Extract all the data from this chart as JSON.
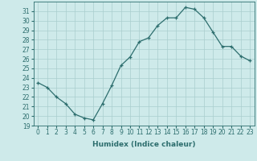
{
  "x": [
    0,
    1,
    2,
    3,
    4,
    5,
    6,
    7,
    8,
    9,
    10,
    11,
    12,
    13,
    14,
    15,
    16,
    17,
    18,
    19,
    20,
    21,
    22,
    23
  ],
  "y": [
    23.5,
    23.0,
    22.0,
    21.3,
    20.2,
    19.8,
    19.6,
    21.3,
    23.2,
    25.3,
    26.2,
    27.8,
    28.2,
    29.5,
    30.3,
    30.3,
    31.4,
    31.2,
    30.3,
    28.8,
    27.3,
    27.3,
    26.3,
    25.8
  ],
  "line_color": "#2d6e6e",
  "marker": "+",
  "bg_color": "#ceeaea",
  "grid_color": "#aacece",
  "xlabel": "Humidex (Indice chaleur)",
  "ylim": [
    19,
    32
  ],
  "xlim": [
    -0.5,
    23.5
  ],
  "yticks": [
    19,
    20,
    21,
    22,
    23,
    24,
    25,
    26,
    27,
    28,
    29,
    30,
    31
  ],
  "xticks": [
    0,
    1,
    2,
    3,
    4,
    5,
    6,
    7,
    8,
    9,
    10,
    11,
    12,
    13,
    14,
    15,
    16,
    17,
    18,
    19,
    20,
    21,
    22,
    23
  ],
  "axis_fontsize": 5.5,
  "label_fontsize": 6.5
}
